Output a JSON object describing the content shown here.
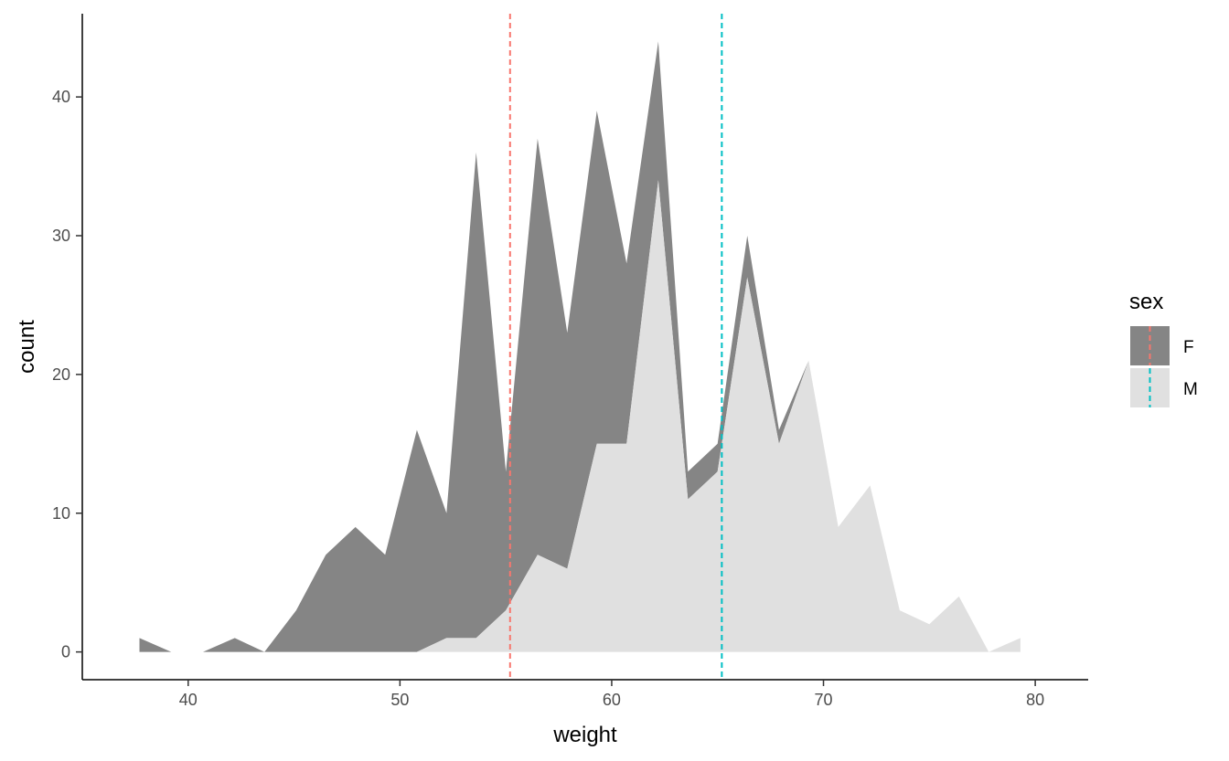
{
  "chart_data": {
    "type": "area",
    "stacked": true,
    "xlabel": "weight",
    "ylabel": "count",
    "xlim": [
      35,
      82.5
    ],
    "ylim": [
      -2,
      46
    ],
    "x_ticks": [
      40,
      50,
      60,
      70,
      80
    ],
    "y_ticks": [
      0,
      10,
      20,
      30,
      40
    ],
    "grid": false,
    "legend": {
      "title": "sex",
      "position": "right"
    },
    "x": [
      37.7,
      39.2,
      40.7,
      42.2,
      43.6,
      45.1,
      46.5,
      47.9,
      49.3,
      50.8,
      52.2,
      53.6,
      55.0,
      56.5,
      57.9,
      59.3,
      60.7,
      62.2,
      63.6,
      65.0,
      66.4,
      67.9,
      69.3,
      70.7,
      72.2,
      73.6,
      75.0,
      76.4,
      77.8,
      79.3
    ],
    "series": [
      {
        "name": "F",
        "color": "#858585",
        "mean": 55.2,
        "mean_line_color": "#F8766D",
        "values": [
          1,
          0,
          0,
          1,
          0,
          3,
          7,
          9,
          7,
          16,
          9,
          35,
          10,
          30,
          17,
          24,
          13,
          10,
          2,
          2,
          3,
          1,
          0,
          0,
          0,
          0,
          0,
          0,
          0,
          0
        ]
      },
      {
        "name": "M",
        "color": "#e0e0e0",
        "mean": 65.2,
        "mean_line_color": "#00BFC4",
        "values": [
          0,
          0,
          0,
          0,
          0,
          0,
          0,
          0,
          0,
          0,
          1,
          1,
          3,
          7,
          6,
          15,
          15,
          34,
          11,
          13,
          27,
          15,
          21,
          9,
          12,
          3,
          2,
          4,
          0,
          1
        ]
      }
    ]
  }
}
